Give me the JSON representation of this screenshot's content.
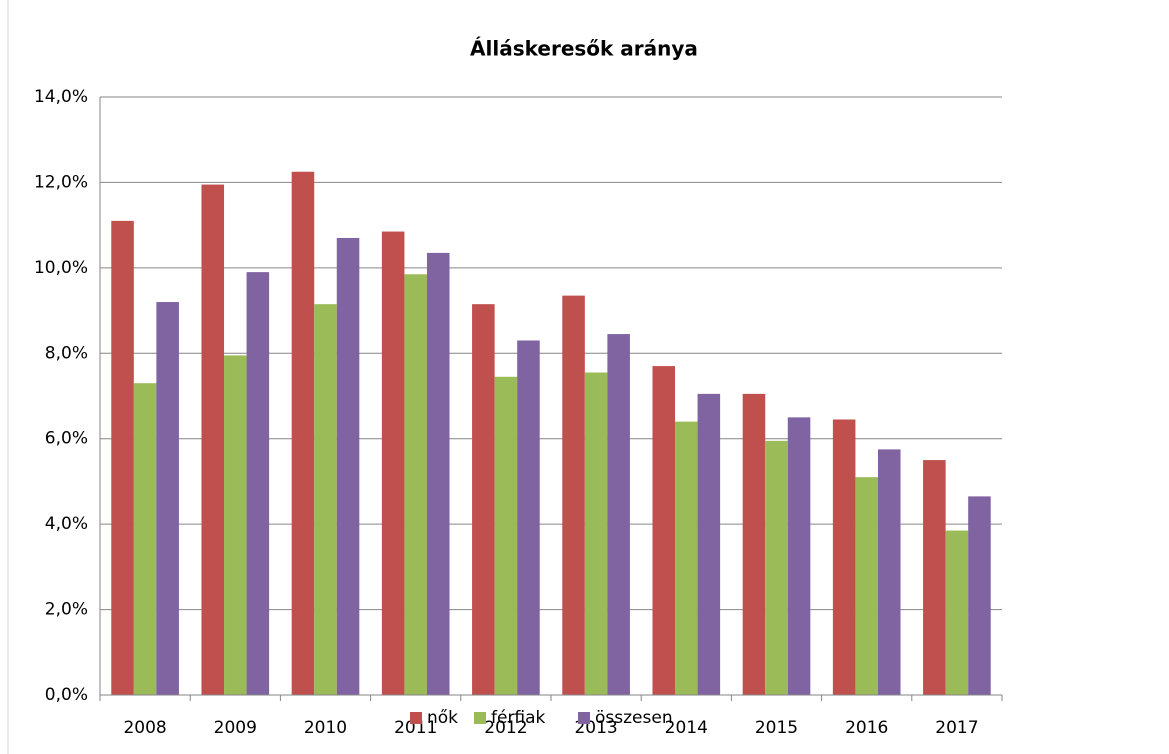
{
  "chart_data": {
    "type": "bar",
    "title": "Álláskeresők aránya",
    "categories": [
      "2008",
      "2009",
      "2010",
      "2011",
      "2012",
      "2013",
      "2014",
      "2015",
      "2016",
      "2017"
    ],
    "series": [
      {
        "name": "nők",
        "color": "#c0504d",
        "values": [
          11.1,
          11.95,
          12.25,
          10.85,
          9.15,
          9.35,
          7.7,
          7.05,
          6.45,
          5.5
        ]
      },
      {
        "name": "férfiak",
        "color": "#9bbb59",
        "values": [
          7.3,
          7.95,
          9.15,
          9.85,
          7.45,
          7.55,
          6.4,
          5.95,
          5.1,
          3.85
        ]
      },
      {
        "name": "összesen",
        "color": "#8064a2",
        "values": [
          9.2,
          9.9,
          10.7,
          10.35,
          8.3,
          8.45,
          7.05,
          6.5,
          5.75,
          4.65
        ]
      }
    ],
    "ylim": [
      0,
      14
    ],
    "yticks": [
      {
        "value": 0,
        "label": "0,0%"
      },
      {
        "value": 2,
        "label": "2,0%"
      },
      {
        "value": 4,
        "label": "4,0%"
      },
      {
        "value": 6,
        "label": "6,0%"
      },
      {
        "value": 8,
        "label": "8,0%"
      },
      {
        "value": 10,
        "label": "10,0%"
      },
      {
        "value": 12,
        "label": "12,0%"
      },
      {
        "value": 14,
        "label": "14,0%"
      }
    ],
    "grid": true,
    "legend": "bottom"
  }
}
